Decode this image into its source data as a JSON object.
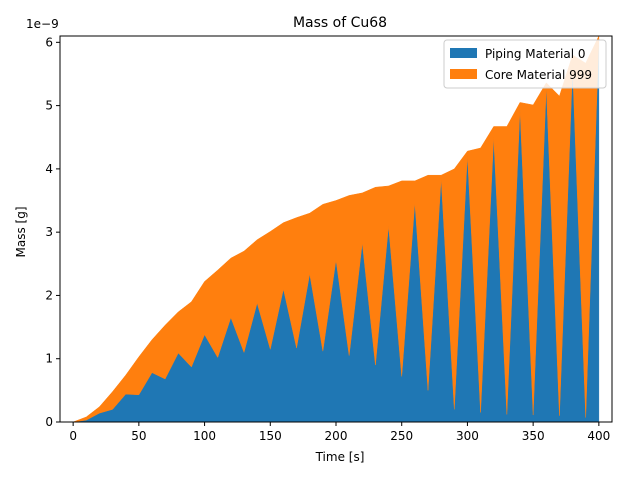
{
  "chart_data": {
    "type": "area",
    "stacked": true,
    "title": "Mass of Cu68",
    "xlabel": "Time [s]",
    "ylabel": "Mass [g]",
    "y_offset_text": "1e−9",
    "y_scale": 1e-09,
    "xlim": [
      -10,
      410
    ],
    "ylim": [
      0,
      6.1
    ],
    "xticks": [
      0,
      50,
      100,
      150,
      200,
      250,
      300,
      350,
      400
    ],
    "yticks": [
      0,
      1,
      2,
      3,
      4,
      5,
      6
    ],
    "grid": false,
    "legend_position": "top-right",
    "x": [
      0,
      10,
      20,
      30,
      40,
      50,
      60,
      70,
      80,
      90,
      100,
      110,
      120,
      130,
      140,
      150,
      160,
      170,
      180,
      190,
      200,
      210,
      220,
      230,
      240,
      250,
      260,
      270,
      280,
      290,
      300,
      310,
      320,
      330,
      340,
      350,
      360,
      370,
      380,
      390,
      400
    ],
    "series": [
      {
        "name": "Piping Material 0",
        "color": "#1f77b4",
        "values": [
          0,
          0.03,
          0.14,
          0.2,
          0.44,
          0.43,
          0.78,
          0.68,
          1.09,
          0.87,
          1.38,
          1.02,
          1.65,
          1.1,
          1.88,
          1.15,
          2.1,
          1.17,
          2.34,
          1.12,
          2.56,
          1.05,
          2.83,
          0.9,
          3.1,
          0.72,
          3.47,
          0.5,
          3.85,
          0.2,
          4.22,
          0.15,
          4.5,
          0.12,
          4.95,
          0.11,
          5.3,
          0.1,
          5.6,
          0.07,
          6.05
        ]
      },
      {
        "name": "Core Material 999",
        "color": "#ff7f0e",
        "values": [
          0,
          0.05,
          0.1,
          0.28,
          0.3,
          0.6,
          0.52,
          0.85,
          0.65,
          1.03,
          0.84,
          1.38,
          0.94,
          1.6,
          1.0,
          1.86,
          1.05,
          2.06,
          0.96,
          2.32,
          0.94,
          2.53,
          0.79,
          2.81,
          0.63,
          3.09,
          0.34,
          3.4,
          0.05,
          3.8,
          0.06,
          4.18,
          0.17,
          4.55,
          0.1,
          4.9,
          0.06,
          5.05,
          0.2,
          5.6,
          0.05
        ]
      }
    ]
  }
}
